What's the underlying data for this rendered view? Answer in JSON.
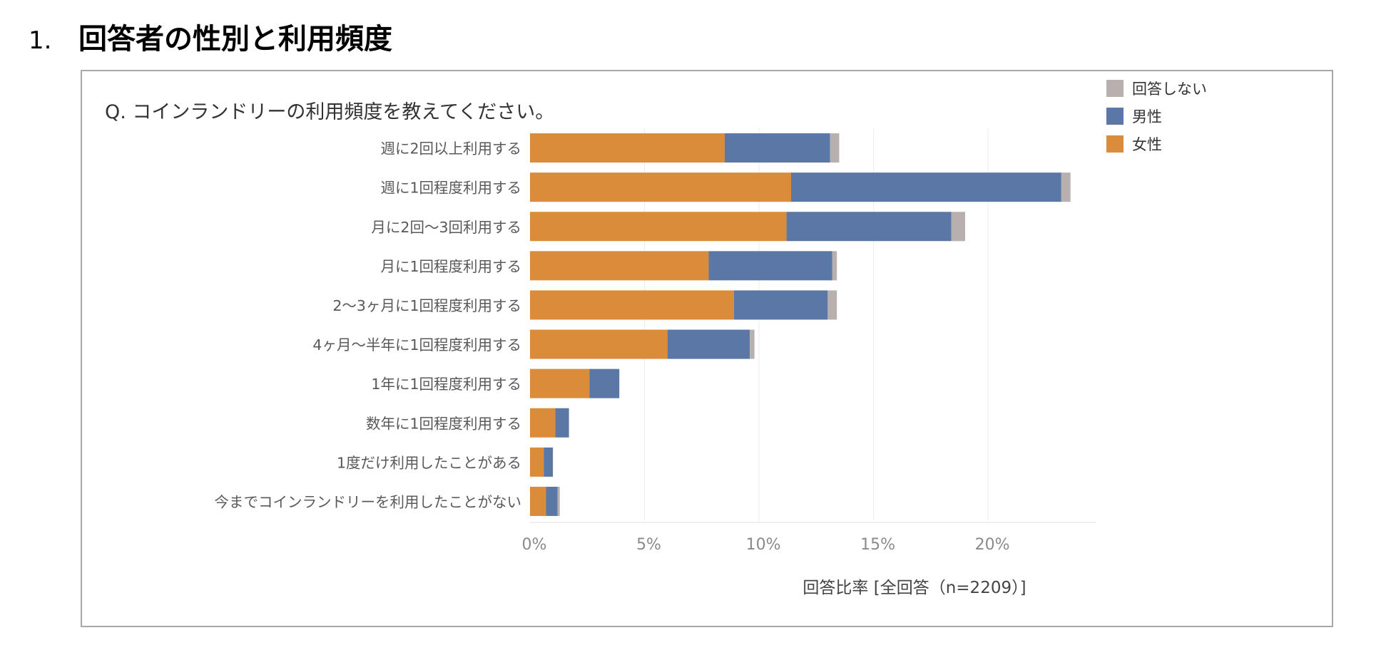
{
  "heading": {
    "number": "1.",
    "title": "回答者の性別と利用頻度"
  },
  "chart_data": {
    "type": "bar",
    "orientation": "horizontal",
    "stacked": true,
    "title": "Q. コインランドリーの利用頻度を教えてください。",
    "xlabel": "回答比率 [全回答（n=2209）]",
    "ylabel": "",
    "xlim": [
      0,
      24.7
    ],
    "xticks": [
      0,
      5,
      10,
      15,
      20
    ],
    "xtick_labels": [
      "0%",
      "5%",
      "10%",
      "15%",
      "20%"
    ],
    "grid": true,
    "legend_position": "top-right",
    "categories": [
      "週に2回以上利用する",
      "週に1回程度利用する",
      "月に2回〜3回利用する",
      "月に1回程度利用する",
      "2〜3ヶ月に1回程度利用する",
      "4ヶ月〜半年に1回程度利用する",
      "1年に1回程度利用する",
      "数年に1回程度利用する",
      "1度だけ利用したことがある",
      "今までコインランドリーを利用したことがない"
    ],
    "series": [
      {
        "name": "女性",
        "color": "#db8c3a",
        "values": [
          8.5,
          11.4,
          11.2,
          7.8,
          8.9,
          6.0,
          2.6,
          1.1,
          0.6,
          0.7
        ]
      },
      {
        "name": "男性",
        "color": "#5b77a6",
        "values": [
          4.6,
          11.8,
          7.2,
          5.4,
          4.1,
          3.6,
          1.3,
          0.6,
          0.4,
          0.5
        ]
      },
      {
        "name": "回答しない",
        "color": "#b8b0ae",
        "values": [
          0.4,
          0.4,
          0.6,
          0.2,
          0.4,
          0.2,
          0.0,
          0.0,
          0.0,
          0.1
        ]
      }
    ],
    "legend_order": [
      "回答しない",
      "男性",
      "女性"
    ]
  }
}
